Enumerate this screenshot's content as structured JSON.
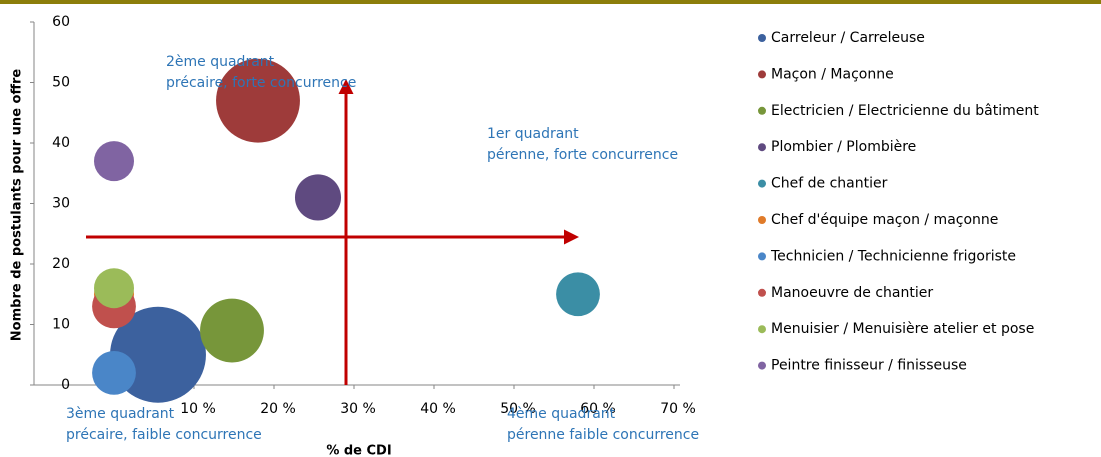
{
  "chart_data": {
    "type": "bubble",
    "x_label": "% de CDI",
    "y_label": "Nombre de postulants pour une offre",
    "xlim": [
      -10,
      70
    ],
    "ylim": [
      0,
      60
    ],
    "xticks": [
      {
        "value": 10,
        "label": "10 %"
      },
      {
        "value": 20,
        "label": "20 %"
      },
      {
        "value": 30,
        "label": "30 %"
      },
      {
        "value": 40,
        "label": "40 %"
      },
      {
        "value": 50,
        "label": "50 %"
      },
      {
        "value": 60,
        "label": "60 %"
      },
      {
        "value": 70,
        "label": "70 %"
      }
    ],
    "yticks": [
      0,
      10,
      20,
      30,
      40,
      50,
      60
    ],
    "legend": "right",
    "series": [
      {
        "name": "Carreleur / Carreleuse",
        "color": "#3c619e",
        "x": [
          5.5
        ],
        "values": [
          5
        ],
        "sizes": [
          23
        ]
      },
      {
        "name": "Maçon / Maçonne",
        "color": "#9e3b3a",
        "x": [
          18
        ],
        "values": [
          47
        ],
        "sizes": [
          17.6
        ]
      },
      {
        "name": "Electricien / Electricienne du bâtiment",
        "color": "#77963a",
        "x": [
          14.75
        ],
        "values": [
          9
        ],
        "sizes": [
          10.2
        ]
      },
      {
        "name": "Plombier / Plombière",
        "color": "#5f4a80",
        "x": [
          25.5
        ],
        "values": [
          31
        ],
        "sizes": [
          5.3
        ]
      },
      {
        "name": "Chef de chantier",
        "color": "#3b8ea5",
        "x": [
          58
        ],
        "values": [
          15
        ],
        "sizes": [
          4.8
        ]
      },
      {
        "name": "Chef d'équipe maçon / maçonne",
        "color": "#e07b2a",
        "x": [
          0
        ],
        "values": [
          15
        ],
        "sizes": [
          4
        ]
      },
      {
        "name": "Technicien / Technicienne frigoriste",
        "color": "#4a86c8",
        "x": [
          0
        ],
        "values": [
          2
        ],
        "sizes": [
          4.8
        ]
      },
      {
        "name": "Manoeuvre de chantier",
        "color": "#c0504d",
        "x": [
          0
        ],
        "values": [
          13
        ],
        "sizes": [
          4.8
        ]
      },
      {
        "name": "Menuisier / Menuisière atelier et pose",
        "color": "#9bbb59",
        "x": [
          0
        ],
        "values": [
          16
        ],
        "sizes": [
          4
        ]
      },
      {
        "name": "Peintre finisseur / finisseuse",
        "color": "#8064a2",
        "x": [
          0
        ],
        "values": [
          37
        ],
        "sizes": [
          4
        ]
      }
    ],
    "annotations": [
      {
        "lines": [
          "2ème quadrant",
          "précaire, forte concurrence"
        ]
      },
      {
        "lines": [
          "1er quadrant",
          "pérenne, forte concurrence"
        ]
      },
      {
        "lines": [
          "3ème quadrant",
          "précaire, faible concurrence"
        ]
      },
      {
        "lines": [
          "4ème quadrant",
          "pérenne faible concurrence"
        ]
      }
    ]
  }
}
